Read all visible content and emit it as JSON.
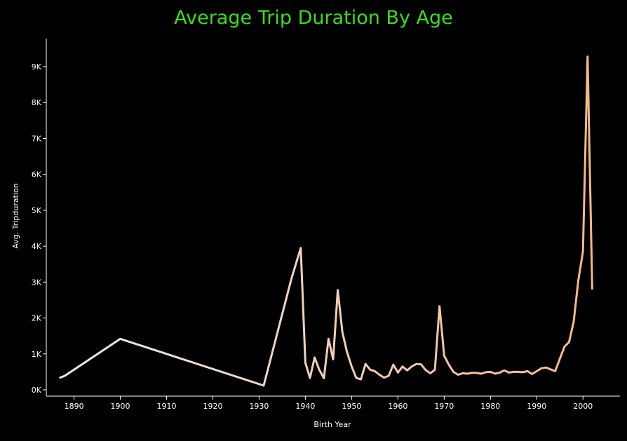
{
  "chart_data": {
    "type": "line",
    "title": "Average Trip Duration By Age",
    "xlabel": "Birth Year",
    "ylabel": "Avg. Tripduration",
    "xlim": [
      1884,
      2008
    ],
    "ylim": [
      0,
      9700
    ],
    "x_ticks": [
      1890,
      1900,
      1910,
      1920,
      1930,
      1940,
      1950,
      1960,
      1970,
      1980,
      1990,
      2000
    ],
    "y_ticks": [
      {
        "value": 0,
        "label": "0K"
      },
      {
        "value": 1000,
        "label": "1K"
      },
      {
        "value": 2000,
        "label": "2K"
      },
      {
        "value": 3000,
        "label": "3K"
      },
      {
        "value": 4000,
        "label": "4K"
      },
      {
        "value": 5000,
        "label": "5K"
      },
      {
        "value": 6000,
        "label": "6K"
      },
      {
        "value": 7000,
        "label": "7K"
      },
      {
        "value": 8000,
        "label": "8K"
      },
      {
        "value": 9000,
        "label": "9K"
      }
    ],
    "grid": false,
    "series": [
      {
        "color_start": "#e8e8e8",
        "color_end": "#f5b78a",
        "points": [
          [
            1887,
            340
          ],
          [
            1888,
            390
          ],
          [
            1900,
            1420
          ],
          [
            1931,
            120
          ],
          [
            1937,
            3100
          ],
          [
            1939,
            3950
          ],
          [
            1940,
            750
          ],
          [
            1941,
            330
          ],
          [
            1942,
            900
          ],
          [
            1943,
            560
          ],
          [
            1944,
            320
          ],
          [
            1945,
            1420
          ],
          [
            1946,
            850
          ],
          [
            1947,
            2780
          ],
          [
            1948,
            1600
          ],
          [
            1949,
            1050
          ],
          [
            1950,
            650
          ],
          [
            1951,
            330
          ],
          [
            1952,
            290
          ],
          [
            1953,
            720
          ],
          [
            1954,
            560
          ],
          [
            1955,
            520
          ],
          [
            1956,
            420
          ],
          [
            1957,
            340
          ],
          [
            1958,
            390
          ],
          [
            1959,
            700
          ],
          [
            1960,
            480
          ],
          [
            1961,
            650
          ],
          [
            1962,
            540
          ],
          [
            1963,
            650
          ],
          [
            1964,
            720
          ],
          [
            1965,
            710
          ],
          [
            1966,
            550
          ],
          [
            1967,
            460
          ],
          [
            1968,
            560
          ],
          [
            1969,
            2330
          ],
          [
            1970,
            950
          ],
          [
            1971,
            700
          ],
          [
            1972,
            500
          ],
          [
            1973,
            420
          ],
          [
            1974,
            460
          ],
          [
            1975,
            450
          ],
          [
            1976,
            470
          ],
          [
            1977,
            470
          ],
          [
            1978,
            450
          ],
          [
            1979,
            490
          ],
          [
            1980,
            500
          ],
          [
            1981,
            450
          ],
          [
            1982,
            480
          ],
          [
            1983,
            540
          ],
          [
            1984,
            480
          ],
          [
            1985,
            500
          ],
          [
            1986,
            500
          ],
          [
            1987,
            490
          ],
          [
            1988,
            520
          ],
          [
            1989,
            440
          ],
          [
            1990,
            520
          ],
          [
            1991,
            600
          ],
          [
            1992,
            620
          ],
          [
            1993,
            570
          ],
          [
            1994,
            520
          ],
          [
            1995,
            860
          ],
          [
            1996,
            1200
          ],
          [
            1997,
            1330
          ],
          [
            1998,
            1900
          ],
          [
            1999,
            3050
          ],
          [
            2000,
            3850
          ],
          [
            2001,
            9280
          ],
          [
            2002,
            2820
          ]
        ]
      }
    ]
  }
}
